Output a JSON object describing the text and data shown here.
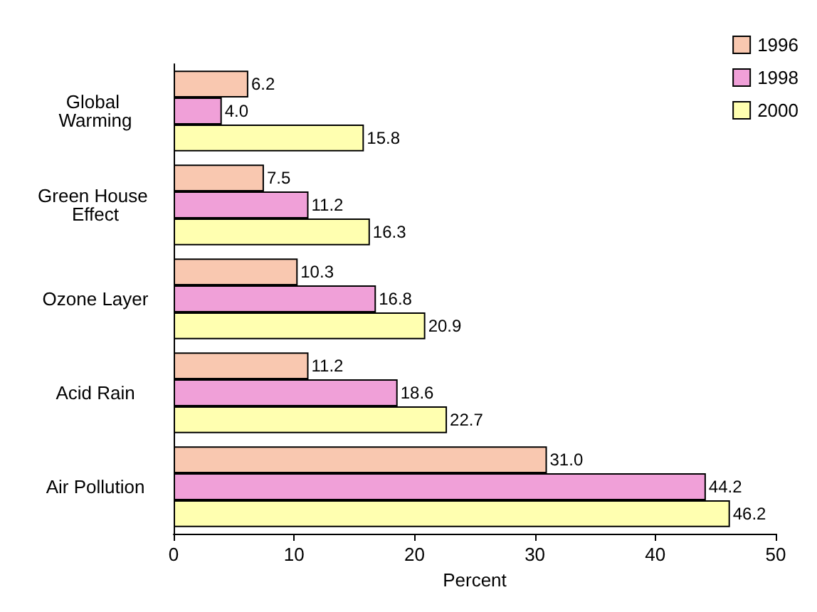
{
  "chart_data": {
    "type": "bar",
    "orientation": "horizontal",
    "xlabel": "Percent",
    "categories": [
      "Global Warming",
      "Green House Effect",
      "Ozone Layer",
      "Acid Rain",
      "Air Pollution"
    ],
    "series": [
      {
        "name": "1996",
        "color": "#f9c8b0",
        "values": [
          6.2,
          7.5,
          10.3,
          11.2,
          31.0
        ],
        "value_labels": [
          "6.2",
          "7.5",
          "10.3",
          "11.2",
          "31.0"
        ]
      },
      {
        "name": "1998",
        "color": "#f0a0d8",
        "values": [
          4.0,
          11.2,
          16.8,
          18.6,
          44.2
        ],
        "value_labels": [
          "4.0",
          "11.2",
          "16.8",
          "18.6",
          "44.2"
        ]
      },
      {
        "name": "2000",
        "color": "#ffffb0",
        "values": [
          15.8,
          16.3,
          20.9,
          22.7,
          46.2
        ],
        "value_labels": [
          "15.8",
          "16.3",
          "20.9",
          "22.7",
          "46.2"
        ]
      }
    ],
    "xlim": [
      0,
      50
    ],
    "xticks": [
      0,
      10,
      20,
      30,
      40,
      50
    ],
    "grid": false,
    "legend": "top right"
  }
}
